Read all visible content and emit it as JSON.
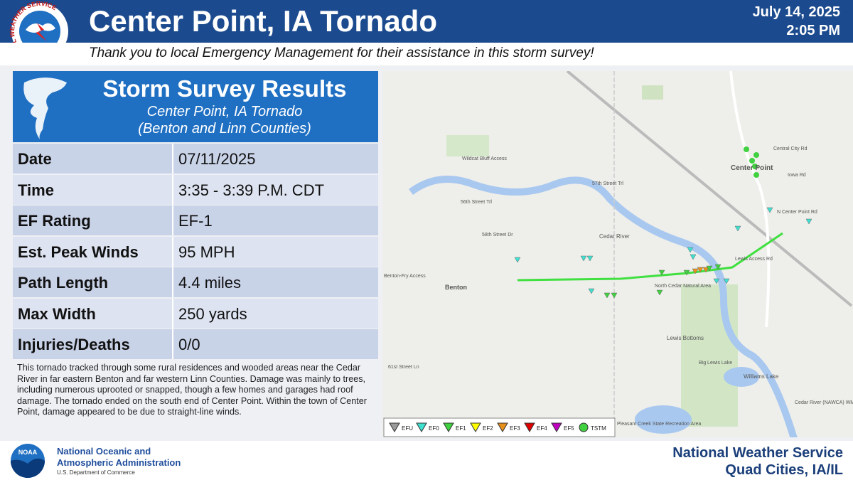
{
  "header": {
    "title": "Center Point, IA Tornado",
    "date": "July 14, 2025",
    "time": "2:05 PM",
    "logo_text": "NATIONAL WEATHER SERVICE",
    "subtitle": "Thank you to local Emergency Management for their assistance in this storm survey!"
  },
  "panel": {
    "heading": "Storm Survey Results",
    "subheading": [
      "Center Point, IA Tornado",
      "(Benton and Linn Counties)"
    ],
    "table": {
      "rows": [
        [
          "Date",
          "07/11/2025"
        ],
        [
          "Time",
          "3:35 - 3:39 P.M. CDT"
        ],
        [
          "EF Rating",
          "EF-1"
        ],
        [
          "Est. Peak Winds",
          "95 MPH"
        ],
        [
          "Path Length",
          "4.4 miles"
        ],
        [
          "Max Width",
          "250 yards"
        ],
        [
          "Injuries/Deaths",
          "0/0"
        ]
      ]
    },
    "description": "This tornado tracked through some rural residences and wooded areas near the Cedar River in far eastern Benton and far western Linn Counties. Damage was mainly to trees, including numerous uprooted or snapped, though a few homes and garages had roof damage. The tornado ended on the south end of Center Point. Within the town of Center Point, damage appeared to be due to straight-line winds."
  },
  "map": {
    "labels": [
      "Center Point",
      "Benton",
      "Cedar River",
      "Lewis Bottoms",
      "North Cedar Natural Area",
      "Williams Lake",
      "Big Lewis Lake",
      "Wildcat Bluff Access",
      "Benton-Fry Access",
      "Central City Rd",
      "Iowa Rd",
      "N Center Point Rd",
      "Lewis Access Rd",
      "58th Street Dr",
      "57th Street Trl",
      "56th Street Trl",
      "61st Street Ln",
      "Pleasant Creek State Recreation Area",
      "Cedar River (NAWCA) WMA"
    ],
    "legend": [
      {
        "label": "EFU",
        "color": "#9a9a9a"
      },
      {
        "label": "EF0",
        "color": "#3fe0d0"
      },
      {
        "label": "EF1",
        "color": "#3fd13f"
      },
      {
        "label": "EF2",
        "color": "#ffff00"
      },
      {
        "label": "EF3",
        "color": "#e8901c"
      },
      {
        "label": "EF4",
        "color": "#e00000"
      },
      {
        "label": "EF5",
        "color": "#c000c0"
      },
      {
        "label": "TSTM",
        "color": "#3fd13f"
      }
    ]
  },
  "footer": {
    "noaa_logo": "NOAA",
    "noaa": [
      "National Oceanic and",
      "Atmospheric Administration",
      "U.S. Department of Commerce"
    ],
    "nws": [
      "National Weather Service",
      "Quad Cities, IA/IL"
    ]
  }
}
